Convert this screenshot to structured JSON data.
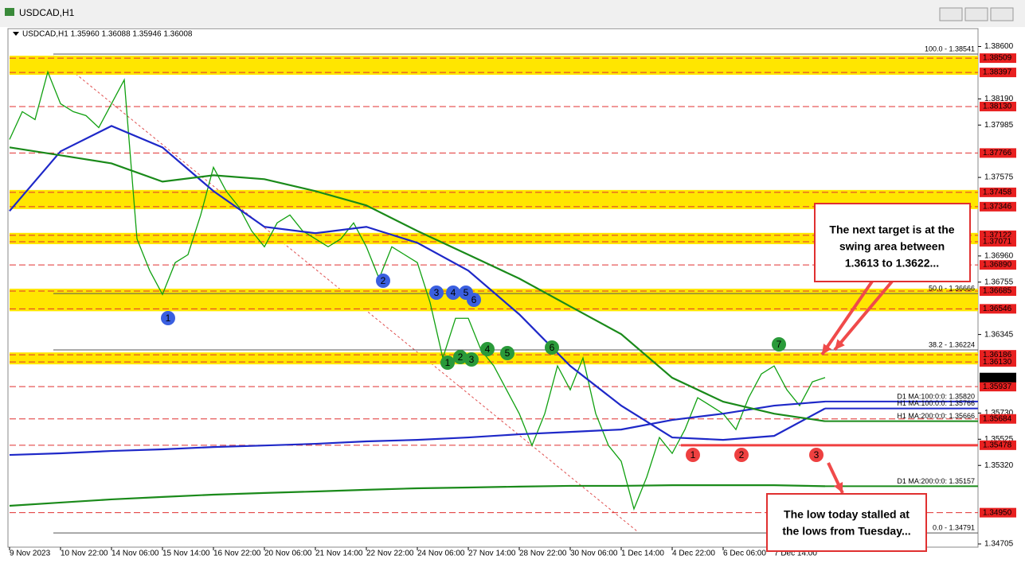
{
  "window_title": "USDCAD,H1",
  "chart_data": {
    "type": "line",
    "symbol_info": "USDCAD,H1  1.35960 1.36088 1.35946 1.36008",
    "categories": [
      "9 Nov 2023",
      "10 Nov 22:00",
      "14 Nov 06:00",
      "15 Nov 14:00",
      "16 Nov 22:00",
      "20 Nov 06:00",
      "21 Nov 14:00",
      "22 Nov 22:00",
      "24 Nov 06:00",
      "27 Nov 14:00",
      "28 Nov 22:00",
      "30 Nov 06:00",
      "1 Dec 14:00",
      "4 Dec 22:00",
      "6 Dec 06:00",
      "7 Dec 14:00",
      null
    ],
    "price": {
      "color": "#10a010",
      "values": [
        1.37872,
        1.3809,
        1.38028,
        1.38401,
        1.38152,
        1.3809,
        1.38059,
        1.37965,
        1.38152,
        1.38339,
        1.37094,
        1.36845,
        1.36659,
        1.36908,
        1.3697,
        1.37281,
        1.37654,
        1.37468,
        1.37343,
        1.37156,
        1.37032,
        1.37219,
        1.37281,
        1.37156,
        1.37094,
        1.37032,
        1.37094,
        1.37219,
        1.37032,
        1.36783,
        1.37032,
        1.3697,
        1.36908,
        1.36596,
        1.36161,
        1.36472,
        1.36472,
        1.36223,
        1.36099,
        1.35912,
        1.35725,
        1.35476,
        1.35725,
        1.36099,
        1.35912,
        1.36161,
        1.35725,
        1.35476,
        1.35352,
        1.34979,
        1.35228,
        1.35539,
        1.35414,
        1.35601,
        1.3585,
        1.35788,
        1.35725,
        1.35601,
        1.3585,
        1.36036,
        1.36099,
        1.35912,
        1.35788,
        1.35974,
        1.36008
      ]
    },
    "current_price": 1.36008,
    "series": [
      {
        "name": "D1 MA:100:0:0: 1.35820",
        "color": "#1e28c8",
        "current": 1.3582,
        "values": [
          1.35402,
          1.35415,
          1.35433,
          1.35446,
          1.35464,
          1.35476,
          1.35489,
          1.35508,
          1.3552,
          1.35539,
          1.35564,
          1.35582,
          1.35601,
          1.35676,
          1.35725,
          1.35788,
          1.3582
        ]
      },
      {
        "name": "H1 MA:100:0:0: 1.35766",
        "color": "#1e28c8",
        "current": 1.35766,
        "values": [
          1.37312,
          1.37779,
          1.37978,
          1.3781,
          1.37468,
          1.37188,
          1.37138,
          1.37188,
          1.37063,
          1.36845,
          1.36503,
          1.36099,
          1.35788,
          1.35539,
          1.3552,
          1.35551,
          1.35766
        ]
      },
      {
        "name": "H1 MA:200:0:0: 1.35666",
        "color": "#1a8a1a",
        "current": 1.35666,
        "values": [
          1.3781,
          1.37748,
          1.37685,
          1.37542,
          1.37592,
          1.37561,
          1.37468,
          1.37356,
          1.37156,
          1.3697,
          1.36783,
          1.36565,
          1.36348,
          1.36006,
          1.35819,
          1.35725,
          1.35666
        ]
      },
      {
        "name": "D1 MA:200:0:0: 1.35157",
        "color": "#1a8a1a",
        "current": 1.35157,
        "values": [
          1.35004,
          1.35029,
          1.35054,
          1.35073,
          1.35091,
          1.35104,
          1.35116,
          1.35129,
          1.35141,
          1.35147,
          1.35154,
          1.3516,
          1.3516,
          1.35165,
          1.35165,
          1.35165,
          1.35157
        ]
      }
    ],
    "ylim": [
      1.3468,
      1.3874
    ],
    "yticks": [
      {
        "value": 1.386,
        "label": "1.38600"
      },
      {
        "value": 1.3819,
        "label": "1.38190"
      },
      1.37985,
      1.37575,
      {
        "value": 1.3696,
        "label": "1.36960"
      },
      1.36755,
      1.36345,
      {
        "value": 1.3573,
        "label": "1.35730"
      },
      1.35525,
      {
        "value": 1.3532,
        "label": "1.35320"
      },
      1.34705
    ],
    "levels": [
      1.38509,
      1.38397,
      {
        "value": 1.3813,
        "label": "1.38130"
      },
      1.37766,
      1.37458,
      1.37346,
      1.37122,
      1.37071,
      {
        "value": 1.3689,
        "label": "1.36890"
      },
      1.36685,
      1.36546,
      1.36186,
      {
        "value": 1.3613,
        "label": "1.36130"
      },
      1.35937,
      1.35684,
      1.35478,
      {
        "value": 1.3495,
        "label": "1.34950"
      }
    ],
    "zones": [
      [
        1.38509,
        1.38397
      ],
      [
        1.37458,
        1.37346
      ],
      [
        1.37122,
        1.37071
      ],
      [
        1.36685,
        1.36546
      ],
      [
        1.36186,
        1.3613
      ]
    ],
    "support_line": 1.35478,
    "fib": [
      {
        "value": 1.38541,
        "label": "100.0 - 1.38541"
      },
      {
        "value": 1.36666,
        "label": "50.0 - 1.36666"
      },
      {
        "value": 1.36224,
        "label": "38.2 - 1.36224"
      },
      {
        "value": 1.34791,
        "label": "0.0 - 1.34791"
      }
    ],
    "markers": {
      "blue": [
        "1",
        "2",
        "3",
        "4",
        "5",
        "6"
      ],
      "green": [
        "1",
        "2",
        "3",
        "4",
        "5",
        "6",
        "7"
      ],
      "red": [
        "1",
        "2",
        "3"
      ]
    },
    "annotations": [
      {
        "lines": [
          "The next target is at the",
          "swing area between",
          "1.3613 to 1.3622..."
        ]
      },
      {
        "lines": [
          "The low today stalled at",
          "the lows from Tuesday..."
        ]
      }
    ]
  }
}
